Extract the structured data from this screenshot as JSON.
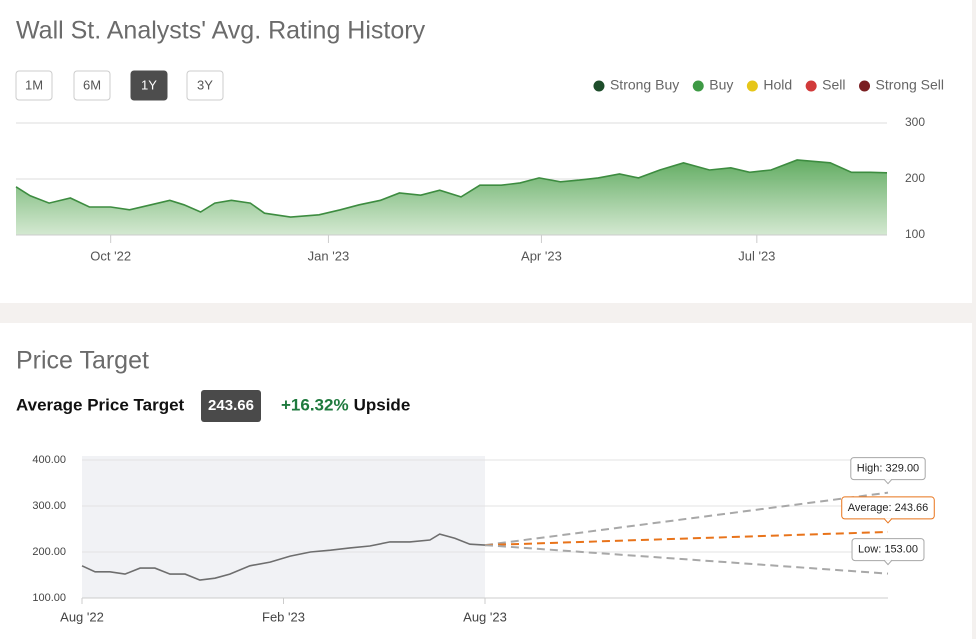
{
  "chart_data": [
    {
      "type": "area",
      "title": "Wall St. Analysts' Avg. Rating History",
      "ranges": [
        "1M",
        "6M",
        "1Y",
        "3Y"
      ],
      "selected_range": "1Y",
      "legend": [
        {
          "name": "Strong Buy",
          "color": "#1e4d2b"
        },
        {
          "name": "Buy",
          "color": "#3e9a45"
        },
        {
          "name": "Hold",
          "color": "#e6c619"
        },
        {
          "name": "Sell",
          "color": "#d13a3a"
        },
        {
          "name": "Strong Sell",
          "color": "#7a1f22"
        }
      ],
      "x": [
        -40,
        -34,
        -26,
        -17,
        -9,
        0,
        8,
        17,
        25,
        31,
        38,
        44,
        51,
        59,
        65,
        76,
        88,
        97,
        105,
        114,
        122,
        131,
        139,
        148,
        156,
        165,
        173,
        181,
        190,
        198,
        206,
        215,
        223,
        232,
        242,
        253,
        262,
        270,
        279,
        290,
        304,
        313,
        321,
        328
      ],
      "values": [
        186,
        170,
        157,
        166,
        150,
        150,
        145,
        154,
        162,
        154,
        141,
        157,
        162,
        157,
        139,
        132,
        136,
        145,
        154,
        162,
        175,
        171,
        180,
        168,
        189,
        189,
        193,
        202,
        195,
        198,
        202,
        209,
        202,
        216,
        229,
        216,
        220,
        212,
        216,
        234,
        229,
        212,
        212,
        211
      ],
      "color": "#3d8c40",
      "xlim": [
        -40,
        328
      ],
      "xticks": [
        {
          "value": 0,
          "label": "Oct '22"
        },
        {
          "value": 92,
          "label": "Jan '23"
        },
        {
          "value": 182,
          "label": "Apr '23"
        },
        {
          "value": 273,
          "label": "Jul '23"
        }
      ],
      "ylim": [
        100,
        300
      ],
      "yticks": [
        100,
        200,
        300
      ],
      "grid": true
    },
    {
      "type": "line",
      "title": "Price Target",
      "summary_label": "Average Price Target",
      "summary_value": 243.66,
      "upside": "+16.32%",
      "upside_label": "Upside",
      "x": [
        0,
        0.39,
        0.83,
        1.28,
        1.73,
        2.17,
        2.62,
        3.07,
        3.51,
        3.96,
        4.4,
        5,
        5.6,
        6.2,
        6.8,
        7.4,
        7.98,
        8.57,
        9.17,
        9.76,
        10.36,
        10.65,
        11.1,
        11.55,
        12
      ],
      "values": [
        170,
        157,
        157,
        152,
        165,
        165,
        152,
        152,
        139,
        143,
        152,
        170,
        178,
        191,
        200,
        204,
        209,
        213,
        222,
        222,
        226,
        239,
        230,
        217,
        215
      ],
      "color": "#6e6e6e",
      "targets": [
        {
          "value": 329,
          "value_label": "High: 329.00",
          "color": "#a8a8a8"
        },
        {
          "value": 243.66,
          "value_label": "Average: 243.66",
          "color": "#e8731a"
        },
        {
          "value": 153,
          "value_label": "Low: 153.00",
          "color": "#a8a8a8"
        }
      ],
      "xlim": [
        0,
        24
      ],
      "xticks": [
        {
          "value": 0,
          "label": "Aug '22"
        },
        {
          "value": 6,
          "label": "Feb '23"
        },
        {
          "value": 12,
          "label": "Aug '23"
        }
      ],
      "ylim": [
        100,
        400
      ],
      "yticks": [
        {
          "value": 100,
          "label": "100.00"
        },
        {
          "value": 200,
          "label": "200.00"
        },
        {
          "value": 300,
          "label": "300.00"
        },
        {
          "value": 400,
          "label": "400.00"
        }
      ],
      "grid": true
    }
  ]
}
